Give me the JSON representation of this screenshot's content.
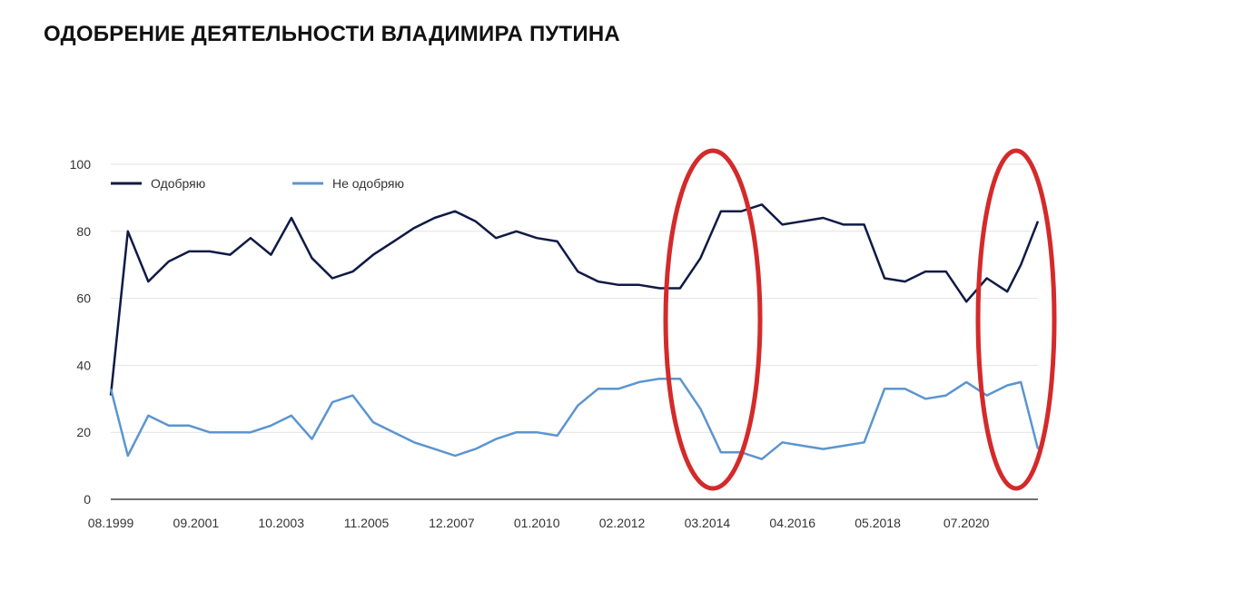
{
  "chart_data": {
    "type": "line",
    "title": "ОДОБРЕНИЕ ДЕЯТЕЛЬНОСТИ ВЛАДИМИРА ПУТИНА",
    "xlabel": "",
    "ylabel": "",
    "ylim": [
      0,
      100
    ],
    "yticks": [
      "0",
      "20",
      "40",
      "60",
      "80",
      "100"
    ],
    "x_tick_labels": [
      "08.1999",
      "09.2001",
      "10.2003",
      "11.2005",
      "12.2007",
      "01.2010",
      "02.2012",
      "03.2014",
      "04.2016",
      "05.2018",
      "07.2020"
    ],
    "x": [
      "08.1999",
      "01.2000",
      "07.2000",
      "01.2001",
      "07.2001",
      "01.2002",
      "07.2002",
      "01.2003",
      "07.2003",
      "01.2004",
      "07.2004",
      "01.2005",
      "07.2005",
      "01.2006",
      "07.2006",
      "01.2007",
      "07.2007",
      "01.2008",
      "07.2008",
      "01.2009",
      "07.2009",
      "01.2010",
      "07.2010",
      "01.2011",
      "07.2011",
      "01.2012",
      "07.2012",
      "01.2013",
      "07.2013",
      "01.2014",
      "07.2014",
      "01.2015",
      "07.2015",
      "01.2016",
      "07.2016",
      "01.2017",
      "07.2017",
      "01.2018",
      "07.2018",
      "01.2019",
      "07.2019",
      "01.2020",
      "07.2020",
      "01.2021",
      "07.2021",
      "11.2021",
      "04.2022"
    ],
    "series": [
      {
        "name": "Одобряю",
        "color": "#0f1a45",
        "values": [
          31,
          80,
          65,
          71,
          74,
          74,
          73,
          78,
          73,
          84,
          72,
          66,
          68,
          73,
          77,
          81,
          84,
          86,
          83,
          78,
          80,
          78,
          77,
          68,
          65,
          64,
          64,
          63,
          63,
          72,
          86,
          86,
          88,
          82,
          83,
          84,
          82,
          82,
          66,
          65,
          68,
          68,
          59,
          66,
          62,
          70,
          83
        ]
      },
      {
        "name": "Не одобряю",
        "color": "#5b95d0",
        "values": [
          33,
          13,
          25,
          22,
          22,
          20,
          20,
          20,
          22,
          25,
          18,
          29,
          31,
          23,
          20,
          17,
          15,
          13,
          15,
          18,
          20,
          20,
          19,
          28,
          33,
          33,
          35,
          36,
          36,
          27,
          14,
          14,
          12,
          17,
          16,
          15,
          16,
          17,
          33,
          33,
          30,
          31,
          35,
          31,
          34,
          35,
          15
        ]
      }
    ],
    "legend_position": "top-left",
    "grid": true
  }
}
